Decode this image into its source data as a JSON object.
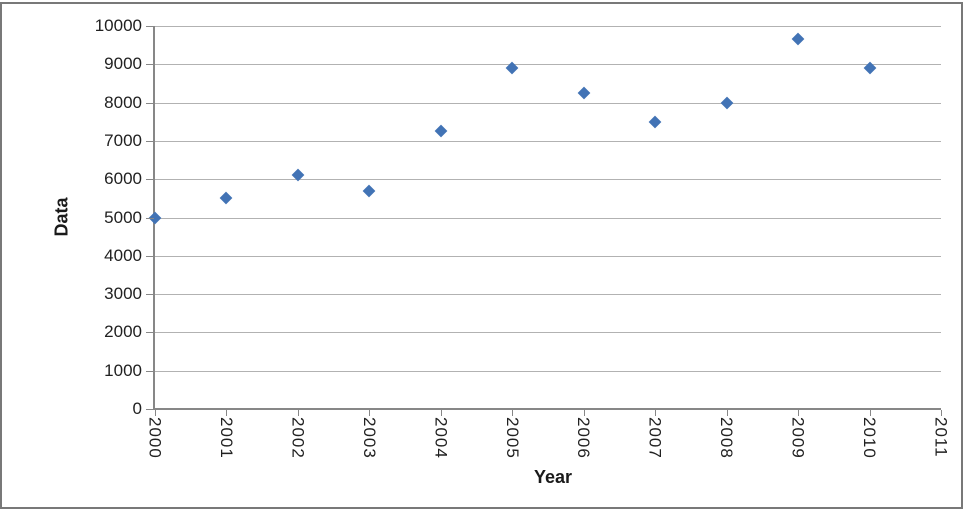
{
  "window": {
    "background": "#ffffff",
    "frame_border_color": "#787878"
  },
  "chart_data": {
    "type": "scatter",
    "xlabel": "Year",
    "ylabel": "Data",
    "x": [
      2000,
      2001,
      2002,
      2003,
      2004,
      2005,
      2006,
      2007,
      2008,
      2009,
      2010
    ],
    "y": [
      5000,
      5500,
      6100,
      5700,
      7250,
      8900,
      8250,
      7500,
      8000,
      9650,
      8900
    ],
    "xticks": [
      2000,
      2001,
      2002,
      2003,
      2004,
      2005,
      2006,
      2007,
      2008,
      2009,
      2010,
      2011
    ],
    "yticks": [
      0,
      1000,
      2000,
      3000,
      4000,
      5000,
      6000,
      7000,
      8000,
      9000,
      10000
    ],
    "xlim": [
      2000,
      2011
    ],
    "ylim": [
      0,
      10000
    ],
    "grid": true,
    "legend": false,
    "marker": "diamond",
    "marker_color": "#4273b5",
    "gridline_color": "#b2b2b2",
    "axis_color": "#878787",
    "tick_label_color": "#212121"
  }
}
